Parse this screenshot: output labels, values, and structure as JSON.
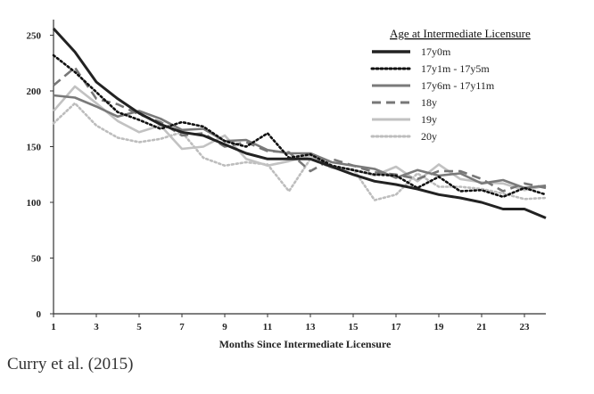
{
  "chart_data": {
    "type": "line",
    "title": "",
    "xlabel": "Months Since Intermediate Licensure",
    "ylabel": "",
    "xlim": [
      1,
      24
    ],
    "ylim": [
      0,
      260
    ],
    "xticks": [
      1,
      3,
      5,
      7,
      9,
      11,
      13,
      15,
      17,
      19,
      21,
      23
    ],
    "yticks": [
      0,
      50,
      100,
      150,
      200,
      250
    ],
    "grid": false,
    "legend": {
      "title": "Age at Intermediate Licensure",
      "placement": "top-right"
    },
    "x": [
      1,
      2,
      3,
      4,
      5,
      6,
      7,
      8,
      9,
      10,
      11,
      12,
      13,
      14,
      15,
      16,
      17,
      18,
      19,
      20,
      21,
      22,
      23,
      24
    ],
    "series": [
      {
        "name": "17y0m",
        "style": "solid-thick",
        "color": "#222222",
        "values": [
          256,
          235,
          208,
          193,
          180,
          170,
          163,
          160,
          152,
          144,
          139,
          139,
          139,
          132,
          125,
          119,
          116,
          112,
          107,
          104,
          100,
          94,
          94,
          86
        ]
      },
      {
        "name": "17y1m - 17y5m",
        "style": "dotted",
        "color": "#111111",
        "values": [
          232,
          217,
          199,
          181,
          174,
          166,
          172,
          168,
          155,
          150,
          162,
          140,
          143,
          133,
          129,
          125,
          124,
          113,
          123,
          110,
          111,
          105,
          113,
          107
        ]
      },
      {
        "name": "17y6m - 17y11m",
        "style": "solid",
        "color": "#7a7a7a",
        "values": [
          196,
          194,
          186,
          177,
          182,
          175,
          165,
          166,
          155,
          156,
          147,
          144,
          144,
          136,
          133,
          130,
          122,
          129,
          124,
          126,
          117,
          120,
          113,
          115
        ]
      },
      {
        "name": "18y",
        "style": "dashed",
        "color": "#777777",
        "values": [
          205,
          221,
          193,
          188,
          179,
          172,
          160,
          162,
          150,
          154,
          146,
          145,
          128,
          139,
          133,
          127,
          125,
          121,
          128,
          128,
          121,
          110,
          117,
          113
        ]
      },
      {
        "name": "19y",
        "style": "solid",
        "color": "#c2c2c2",
        "values": [
          182,
          204,
          189,
          173,
          163,
          169,
          148,
          150,
          160,
          139,
          133,
          137,
          142,
          131,
          129,
          124,
          132,
          119,
          134,
          121,
          118,
          117,
          111,
          115
        ]
      },
      {
        "name": "20y",
        "style": "dotted",
        "color": "#bdbdbd",
        "values": [
          171,
          189,
          169,
          158,
          154,
          157,
          163,
          140,
          133,
          136,
          134,
          110,
          139,
          131,
          130,
          102,
          107,
          126,
          114,
          114,
          112,
          108,
          103,
          104
        ]
      }
    ]
  },
  "citation": "Curry et al. (2015)"
}
